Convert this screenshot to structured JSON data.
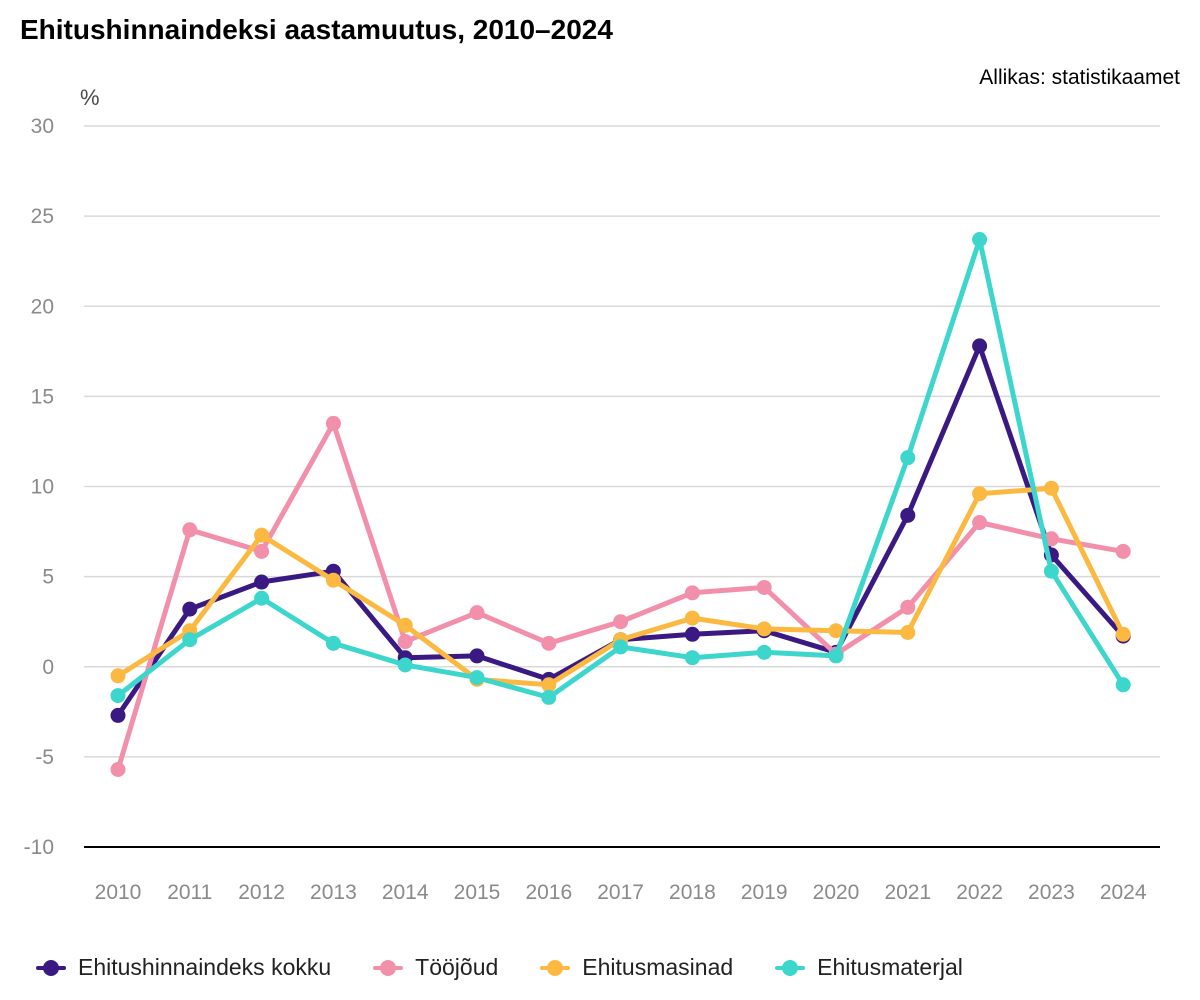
{
  "chart_data": {
    "type": "line",
    "title": "Ehitushinnaindeksi aastamuutus, 2010–2024",
    "source": "Allikas: statistikaamet",
    "ylabel": "%",
    "xlabel": "",
    "ylim": [
      -10,
      30
    ],
    "yticks": [
      30,
      25,
      20,
      15,
      10,
      5,
      0,
      -5,
      -10
    ],
    "grid": true,
    "legend_position": "bottom",
    "categories": [
      "2010",
      "2011",
      "2012",
      "2013",
      "2014",
      "2015",
      "2016",
      "2017",
      "2018",
      "2019",
      "2020",
      "2021",
      "2022",
      "2023",
      "2024"
    ],
    "series": [
      {
        "name": "Ehitushinnaindeks kokku",
        "color": "#3a1a82",
        "values": [
          -2.7,
          3.2,
          4.7,
          5.3,
          0.5,
          0.6,
          -0.7,
          1.5,
          1.8,
          2.0,
          0.8,
          8.4,
          17.8,
          6.2,
          1.7
        ]
      },
      {
        "name": "Tööjõud",
        "color": "#f290ab",
        "values": [
          -5.7,
          7.6,
          6.4,
          13.5,
          1.4,
          3.0,
          1.3,
          2.5,
          4.1,
          4.4,
          0.7,
          3.3,
          8.0,
          7.1,
          6.4
        ]
      },
      {
        "name": "Ehitusmasinad",
        "color": "#fbb941",
        "values": [
          -0.5,
          2.0,
          7.3,
          4.8,
          2.3,
          -0.7,
          -1.0,
          1.5,
          2.7,
          2.1,
          2.0,
          1.9,
          9.6,
          9.9,
          1.8
        ]
      },
      {
        "name": "Ehitusmaterjal",
        "color": "#3dd6cc",
        "values": [
          -1.6,
          1.5,
          3.8,
          1.3,
          0.1,
          -0.6,
          -1.7,
          1.1,
          0.5,
          0.8,
          0.6,
          11.6,
          23.7,
          5.3,
          -1.0
        ]
      }
    ]
  }
}
